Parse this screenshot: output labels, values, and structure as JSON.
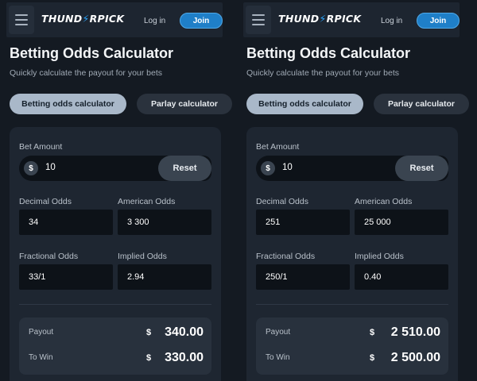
{
  "panels": [
    {
      "header": {
        "logo": "THUNDERPICK",
        "login": "Log in",
        "join": "Join"
      },
      "title": "Betting Odds Calculator",
      "subtitle": "Quickly calculate the payout for your bets",
      "tabs": [
        "Betting odds calculator",
        "Parlay calculator"
      ],
      "bet_amount": {
        "label": "Bet Amount",
        "currency": "$",
        "value": "10",
        "reset": "Reset"
      },
      "decimal_odds": {
        "label": "Decimal Odds",
        "value": "34"
      },
      "american_odds": {
        "label": "American Odds",
        "value": "3 300"
      },
      "fractional_odds": {
        "label": "Fractional Odds",
        "value": "33/1"
      },
      "implied_odds": {
        "label": "Implied Odds",
        "value": "2.94"
      },
      "payout": {
        "label": "Payout",
        "currency": "$",
        "value": "340.00"
      },
      "to_win": {
        "label": "To Win",
        "currency": "$",
        "value": "330.00"
      }
    },
    {
      "header": {
        "logo": "THUNDERPICK",
        "login": "Log in",
        "join": "Join"
      },
      "title": "Betting Odds Calculator",
      "subtitle": "Quickly calculate the payout for your bets",
      "tabs": [
        "Betting odds calculator",
        "Parlay calculator"
      ],
      "bet_amount": {
        "label": "Bet Amount",
        "currency": "$",
        "value": "10",
        "reset": "Reset"
      },
      "decimal_odds": {
        "label": "Decimal Odds",
        "value": "251"
      },
      "american_odds": {
        "label": "American Odds",
        "value": "25 000"
      },
      "fractional_odds": {
        "label": "Fractional Odds",
        "value": "250/1"
      },
      "implied_odds": {
        "label": "Implied Odds",
        "value": "0.40"
      },
      "payout": {
        "label": "Payout",
        "currency": "$",
        "value": "2 510.00"
      },
      "to_win": {
        "label": "To Win",
        "currency": "$",
        "value": "2 500.00"
      }
    }
  ],
  "icons": {
    "menu": "hamburger-menu-icon",
    "logo_bolt": "lightning-bolt-icon",
    "currency": "dollar-icon"
  },
  "colors": {
    "background": "#141a22",
    "card": "#1e2631",
    "accent_blue": "#1f7fc8",
    "active_tab": "#a9b8c9"
  }
}
